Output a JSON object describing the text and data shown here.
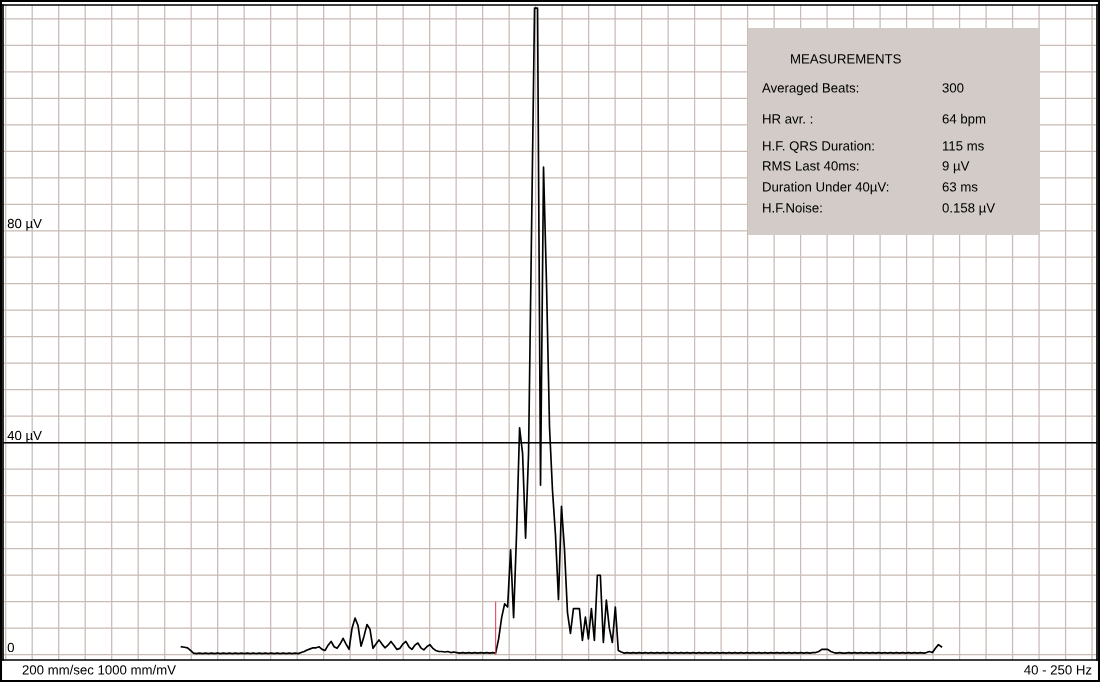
{
  "chart_data": {
    "type": "line",
    "categories": [
      null,
      null,
      null,
      null,
      null,
      null,
      null,
      null,
      null,
      null,
      null,
      null,
      null,
      null,
      null,
      null,
      null,
      null,
      null,
      null,
      null,
      null,
      null,
      null,
      null,
      null,
      null,
      null,
      null,
      null,
      null,
      null,
      null,
      null,
      null,
      null,
      null,
      null,
      null,
      null,
      null,
      null,
      null,
      null,
      null,
      null,
      null,
      null,
      null,
      null,
      null,
      null,
      null,
      null,
      null,
      null,
      null,
      null,
      null,
      null,
      null,
      null,
      null,
      null,
      null,
      null,
      null,
      null,
      null,
      null,
      null,
      null,
      null,
      null,
      null,
      null,
      null,
      null,
      null,
      null,
      null,
      null,
      null,
      null,
      null,
      null,
      null,
      null,
      null,
      null,
      null,
      null,
      null,
      null,
      null,
      null,
      null,
      null,
      null,
      null,
      null,
      null,
      null,
      null,
      null,
      null,
      null,
      null,
      null,
      null,
      null,
      null,
      null,
      null,
      null,
      null,
      null,
      null,
      null,
      null,
      null,
      null,
      null,
      null,
      null,
      null,
      null,
      null,
      null,
      null,
      null,
      null,
      null,
      null,
      null,
      null,
      null,
      null,
      null,
      null,
      null,
      null,
      null,
      null,
      null,
      null,
      null,
      null,
      null,
      null,
      null,
      null,
      null,
      null,
      null,
      null,
      null,
      null,
      null,
      null,
      null,
      null,
      null,
      null,
      null,
      null,
      null,
      null,
      null,
      null,
      null,
      null,
      null,
      null,
      null,
      null,
      null,
      null,
      null,
      null,
      null,
      null,
      null,
      null,
      null,
      null,
      null,
      null,
      null,
      null,
      null,
      null,
      null,
      null,
      null,
      null,
      null,
      null,
      null,
      null,
      null,
      null,
      null,
      null,
      null,
      null,
      null,
      null,
      null,
      null,
      null,
      null,
      null,
      null,
      null,
      null,
      null,
      null,
      null,
      null,
      null,
      null,
      null,
      null,
      null,
      null,
      null,
      null,
      null,
      null,
      null,
      null,
      null,
      null,
      null,
      null,
      null,
      null,
      null,
      null,
      null,
      null,
      null,
      null,
      null,
      null,
      null,
      null,
      null,
      null,
      null,
      null,
      null,
      null,
      null
    ],
    "series": [
      {
        "color": "#000000",
        "values": [
          1.5,
          1.4,
          1.3,
          0.8,
          0.3,
          0.2,
          0.3,
          0.2,
          0.3,
          0.2,
          0.3,
          0.2,
          0.3,
          0.2,
          0.3,
          0.2,
          0.3,
          0.2,
          0.3,
          0.2,
          0.3,
          0.2,
          0.3,
          0.2,
          0.3,
          0.2,
          0.3,
          0.2,
          0.3,
          0.2,
          0.3,
          0.2,
          0.3,
          0.2,
          0.3,
          0.2,
          0.3,
          0.2,
          0.3,
          0.2,
          0.4,
          0.6,
          0.9,
          1.1,
          1.3,
          1.3,
          1.5,
          1.0,
          0.8,
          1.8,
          2.5,
          1.5,
          1.2,
          2.0,
          3.1,
          2.0,
          1.0,
          5.0,
          6.9,
          5.5,
          1.6,
          3.5,
          5.7,
          4.8,
          1.2,
          2.0,
          2.8,
          2.0,
          1.3,
          1.8,
          2.5,
          1.8,
          1.0,
          1.2,
          2.0,
          2.5,
          1.5,
          1.0,
          1.8,
          2.2,
          1.3,
          0.9,
          1.5,
          1.9,
          1.2,
          0.8,
          0.6,
          0.6,
          0.5,
          0.6,
          0.4,
          0.5,
          0.4,
          0.3,
          0.4,
          0.3,
          0.4,
          0.3,
          0.4,
          0.3,
          0.4,
          0.3,
          0.4,
          0.3,
          0.4,
          0.3,
          3,
          7,
          9.6,
          9,
          19.8,
          7,
          23,
          42.8,
          38,
          22,
          38,
          80,
          122,
          122,
          32,
          92,
          70,
          43,
          31,
          22.6,
          10.4,
          28,
          20,
          8,
          4,
          8.7,
          8.7,
          8.7,
          2.7,
          7.1,
          3,
          8.7,
          2.7,
          15,
          15,
          2.3,
          10.3,
          5,
          2.3,
          9,
          0.8,
          0.5,
          0.3,
          0.4,
          0.3,
          0.4,
          0.3,
          0.4,
          0.3,
          0.4,
          0.3,
          0.4,
          0.3,
          0.4,
          0.3,
          0.4,
          0.3,
          0.4,
          0.3,
          0.4,
          0.3,
          0.4,
          0.3,
          0.4,
          0.3,
          0.4,
          0.3,
          0.4,
          0.3,
          0.4,
          0.3,
          0.4,
          0.3,
          0.4,
          0.3,
          0.4,
          0.3,
          0.4,
          0.3,
          0.4,
          0.3,
          0.4,
          0.3,
          0.4,
          0.3,
          0.4,
          0.3,
          0.4,
          0.3,
          0.4,
          0.3,
          0.4,
          0.3,
          0.4,
          0.3,
          0.4,
          0.3,
          0.4,
          0.3,
          0.4,
          0.3,
          0.4,
          0.3,
          0.4,
          0.3,
          0.4,
          0.4,
          0.6,
          1.0,
          1.0,
          1.0,
          0.6,
          0.4,
          0.3,
          0.4,
          0.3,
          0.3,
          0.4,
          0.3,
          0.4,
          0.3,
          0.4,
          0.3,
          0.4,
          0.3,
          0.4,
          0.3,
          0.4,
          0.3,
          0.4,
          0.3,
          0.4,
          0.3,
          0.4,
          0.3,
          0.4,
          0.3,
          0.4,
          0.3,
          0.4,
          0.3,
          0.4,
          0.3,
          0.4,
          0.6,
          0.4,
          1.2,
          1.9,
          1.5
        ]
      },
      {
        "type": "bar",
        "color": "#e0405a",
        "values": [
          null,
          null,
          null,
          null,
          null,
          null,
          null,
          null,
          null,
          null,
          null,
          null,
          null,
          null,
          null,
          null,
          null,
          null,
          null,
          null,
          null,
          null,
          null,
          null,
          null,
          null,
          null,
          null,
          null,
          null,
          null,
          null,
          null,
          null,
          null,
          null,
          null,
          null,
          null,
          null,
          null,
          null,
          null,
          null,
          null,
          null,
          null,
          null,
          null,
          null,
          null,
          null,
          null,
          null,
          null,
          null,
          null,
          null,
          null,
          null,
          null,
          null,
          null,
          null,
          null,
          null,
          null,
          null,
          null,
          null,
          null,
          null,
          null,
          null,
          null,
          null,
          null,
          null,
          null,
          null,
          null,
          null,
          null,
          null,
          null,
          null,
          null,
          null,
          null,
          null,
          null,
          null,
          null,
          null,
          null,
          null,
          null,
          null,
          null,
          null,
          null,
          null,
          null,
          null,
          null,
          10,
          null,
          null,
          null,
          null,
          null,
          null,
          null,
          null,
          null,
          null,
          null,
          null,
          null,
          null,
          null,
          null,
          null,
          null,
          null,
          null,
          null,
          null,
          null,
          null,
          null,
          null,
          null,
          null,
          null,
          null,
          null,
          null,
          null,
          null,
          null,
          null,
          null,
          null,
          null,
          null,
          null,
          null,
          null,
          null,
          null,
          null,
          null,
          null,
          null,
          null,
          null,
          null,
          null,
          null,
          null,
          null,
          null,
          null,
          null,
          null,
          null,
          null,
          null,
          null,
          null,
          null,
          null,
          null,
          null,
          null,
          null,
          null,
          null,
          null,
          null,
          null,
          null,
          null,
          null,
          null,
          null,
          null,
          null,
          null,
          null,
          null,
          null,
          null,
          null,
          null,
          null,
          null,
          null,
          null,
          null,
          null,
          null,
          null,
          null,
          null,
          null,
          null,
          null,
          null,
          null,
          null,
          null,
          null,
          null,
          null,
          null,
          null,
          null,
          null,
          null,
          null,
          null,
          null,
          null,
          null,
          null,
          null,
          null,
          null,
          null,
          null,
          null,
          null,
          null,
          null,
          null,
          null,
          null,
          null,
          null,
          null,
          null,
          null,
          null,
          null,
          null,
          null,
          null,
          null,
          null,
          null,
          null,
          null,
          null
        ]
      }
    ],
    "ylim": [
      -1,
      122.6
    ],
    "yticks": [
      {
        "value": 0,
        "label": "0"
      },
      {
        "value": 40,
        "label": "40 µV"
      },
      {
        "value": 80,
        "label": "80 µV"
      }
    ],
    "tick_labels": "y",
    "grid": true,
    "legend": false,
    "ref_lines": [
      {
        "axis": "y",
        "value": 40,
        "color": "#000000"
      }
    ],
    "annotations": [
      "200 mm/sec 1000 mm/mV",
      "40 - 250 Hz",
      "MEASUREMENTS",
      "Averaged Beats:",
      "300",
      "HR avr. :",
      "64 bpm",
      "H.F. QRS Duration:",
      "115 ms",
      "RMS Last 40ms:",
      "9 µV",
      "Duration Under 40µV:",
      "63 ms",
      "H.F.Noise:",
      "0.158 µV"
    ]
  }
}
